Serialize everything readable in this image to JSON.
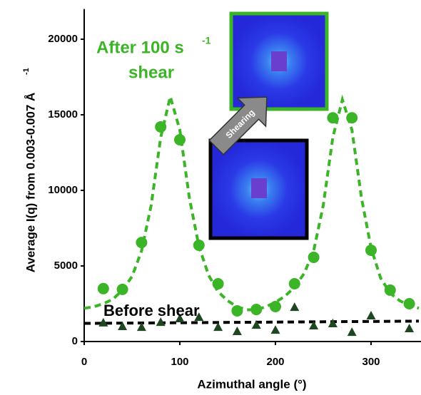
{
  "chart_data": {
    "type": "scatter",
    "ylabel": "Average I(q) from 0.003-0.007 Å",
    "ylabel_sup": "-1",
    "xlabel": "Azimuthal angle (°)",
    "annotations": {
      "after_line1": "After 100 s",
      "after_sup": "-1",
      "after_line2": "shear",
      "before": "Before shear",
      "arrow": "Shearing"
    },
    "xlim": [
      0,
      350
    ],
    "ylim": [
      0,
      22000
    ],
    "xticks": [
      0,
      100,
      200,
      300
    ],
    "yticks": [
      0,
      5000,
      10000,
      15000,
      20000
    ],
    "grid": false,
    "series": [
      {
        "color": "#3cb427",
        "marker": "circle",
        "x": [
          20,
          40,
          60,
          80,
          100,
          120,
          140,
          160,
          180,
          200,
          220,
          240,
          260,
          280,
          300,
          320,
          340
        ],
        "values": [
          3500,
          3450,
          6550,
          14200,
          13350,
          6370,
          3820,
          2030,
          2120,
          2310,
          3820,
          5570,
          14800,
          14800,
          6040,
          3400,
          2500
        ]
      },
      {
        "color": "#1e4620",
        "marker": "triangle",
        "x": [
          20,
          40,
          60,
          80,
          100,
          120,
          140,
          160,
          180,
          200,
          220,
          240,
          260,
          280,
          300,
          340
        ],
        "values": [
          1230,
          990,
          940,
          1270,
          1510,
          1600,
          940,
          660,
          1080,
          750,
          2260,
          1040,
          1180,
          610,
          1700,
          850
        ]
      },
      {
        "color": "#3cb427",
        "marker": "dashed-line",
        "x": [
          0,
          10,
          20,
          30,
          40,
          50,
          60,
          70,
          80,
          90,
          100,
          110,
          120,
          130,
          140,
          150,
          160,
          170,
          180,
          190,
          200,
          210,
          220,
          230,
          240,
          250,
          260,
          270,
          280,
          290,
          300,
          310,
          320,
          330,
          340,
          350
        ],
        "values": [
          2200,
          2300,
          2500,
          2800,
          3400,
          4300,
          6000,
          9000,
          13500,
          16200,
          14000,
          9500,
          6300,
          4400,
          3300,
          2700,
          2300,
          2100,
          2100,
          2300,
          2600,
          3000,
          3600,
          4500,
          6000,
          9000,
          13500,
          16000,
          14000,
          9500,
          6200,
          4200,
          3200,
          2700,
          2400,
          2200
        ]
      },
      {
        "color": "#000000",
        "marker": "dashed-line",
        "x": [
          0,
          350
        ],
        "values": [
          1200,
          1350
        ]
      }
    ]
  }
}
